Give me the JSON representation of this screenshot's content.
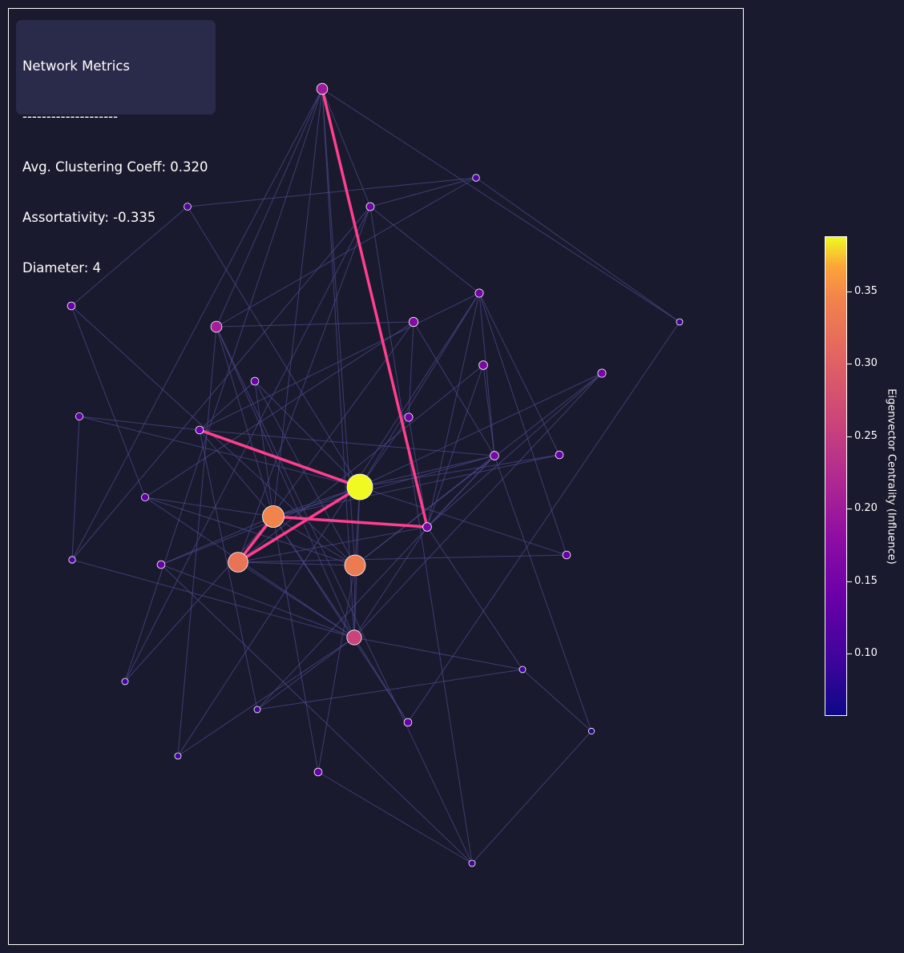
{
  "metrics": {
    "title": "Network Metrics",
    "separator": "--------------------",
    "clustering": "Avg. Clustering Coeff: 0.320",
    "assortativity": "Assortativity: -0.335",
    "diameter": "Diameter: 4"
  },
  "colorbar": {
    "label": "Eigenvector Centrality (Influence)",
    "colormap": "plasma",
    "range": [
      0.057,
      0.388
    ],
    "ticks": [
      "0.10",
      "0.15",
      "0.20",
      "0.25",
      "0.30",
      "0.35"
    ]
  },
  "colors": {
    "background": "#1a1a2e",
    "edge": "#4a4a8a",
    "path": "#ff3f8f",
    "metrics_box": "#2a2a4a"
  },
  "chart_data": {
    "type": "network",
    "nodes": [
      {
        "id": "n0",
        "centrality": 0.388
      },
      {
        "id": "n1",
        "centrality": 0.345
      },
      {
        "id": "n2",
        "centrality": 0.335
      },
      {
        "id": "n3",
        "centrality": 0.325
      },
      {
        "id": "n4",
        "centrality": 0.26
      },
      {
        "id": "n5",
        "centrality": 0.205
      },
      {
        "id": "n6",
        "centrality": 0.2
      },
      {
        "id": "n7",
        "centrality": 0.16
      },
      {
        "id": "n8",
        "centrality": 0.155
      },
      {
        "id": "n9",
        "centrality": 0.15
      },
      {
        "id": "n10",
        "centrality": 0.145
      },
      {
        "id": "n11",
        "centrality": 0.14
      },
      {
        "id": "n12",
        "centrality": 0.14
      },
      {
        "id": "n13",
        "centrality": 0.115
      },
      {
        "id": "n14",
        "centrality": 0.12
      },
      {
        "id": "n15",
        "centrality": 0.16
      },
      {
        "id": "n16",
        "centrality": 0.17
      },
      {
        "id": "n17",
        "centrality": 0.15
      },
      {
        "id": "n18",
        "centrality": 0.14
      },
      {
        "id": "n19",
        "centrality": 0.14
      },
      {
        "id": "n20",
        "centrality": 0.13
      },
      {
        "id": "n21",
        "centrality": 0.13
      },
      {
        "id": "n22",
        "centrality": 0.14
      },
      {
        "id": "n23",
        "centrality": 0.14
      },
      {
        "id": "n24",
        "centrality": 0.15
      },
      {
        "id": "n25",
        "centrality": 0.14
      },
      {
        "id": "n26",
        "centrality": 0.14
      },
      {
        "id": "n27",
        "centrality": 0.11
      },
      {
        "id": "n28",
        "centrality": 0.1
      },
      {
        "id": "n29",
        "centrality": 0.1
      },
      {
        "id": "n30",
        "centrality": 0.1
      },
      {
        "id": "n31",
        "centrality": 0.1
      },
      {
        "id": "n32",
        "centrality": 0.1
      },
      {
        "id": "n33",
        "centrality": 0.1
      }
    ],
    "edges": [
      [
        "n0",
        "n1"
      ],
      [
        "n0",
        "n2"
      ],
      [
        "n0",
        "n3"
      ],
      [
        "n0",
        "n4"
      ],
      [
        "n0",
        "n8"
      ],
      [
        "n0",
        "n9"
      ],
      [
        "n0",
        "n11"
      ],
      [
        "n0",
        "n12"
      ],
      [
        "n0",
        "n14"
      ],
      [
        "n0",
        "n17"
      ],
      [
        "n0",
        "n21"
      ],
      [
        "n0",
        "n22"
      ],
      [
        "n0",
        "n23"
      ],
      [
        "n0",
        "n24"
      ],
      [
        "n0",
        "n26"
      ],
      [
        "n1",
        "n2"
      ],
      [
        "n1",
        "n3"
      ],
      [
        "n1",
        "n4"
      ],
      [
        "n1",
        "n5"
      ],
      [
        "n1",
        "n6"
      ],
      [
        "n1",
        "n7"
      ],
      [
        "n1",
        "n8"
      ],
      [
        "n1",
        "n11"
      ],
      [
        "n1",
        "n12"
      ],
      [
        "n1",
        "n18"
      ],
      [
        "n1",
        "n19"
      ],
      [
        "n1",
        "n20"
      ],
      [
        "n1",
        "n22"
      ],
      [
        "n1",
        "n23"
      ],
      [
        "n1",
        "n28"
      ],
      [
        "n2",
        "n3"
      ],
      [
        "n2",
        "n4"
      ],
      [
        "n2",
        "n6"
      ],
      [
        "n2",
        "n8"
      ],
      [
        "n2",
        "n12"
      ],
      [
        "n2",
        "n19"
      ],
      [
        "n2",
        "n20"
      ],
      [
        "n2",
        "n24"
      ],
      [
        "n2",
        "n25"
      ],
      [
        "n3",
        "n4"
      ],
      [
        "n3",
        "n7"
      ],
      [
        "n3",
        "n10"
      ],
      [
        "n3",
        "n15"
      ],
      [
        "n3",
        "n16"
      ],
      [
        "n3",
        "n26"
      ],
      [
        "n4",
        "n5"
      ],
      [
        "n4",
        "n6"
      ],
      [
        "n4",
        "n7"
      ],
      [
        "n4",
        "n18"
      ],
      [
        "n4",
        "n20"
      ],
      [
        "n4",
        "n22"
      ],
      [
        "n4",
        "n24"
      ],
      [
        "n4",
        "n27"
      ],
      [
        "n4",
        "n29"
      ],
      [
        "n4",
        "n30"
      ],
      [
        "n4",
        "n31"
      ],
      [
        "n5",
        "n6"
      ],
      [
        "n5",
        "n13"
      ],
      [
        "n5",
        "n16"
      ],
      [
        "n5",
        "n30"
      ],
      [
        "n5",
        "n33"
      ],
      [
        "n6",
        "n10"
      ],
      [
        "n6",
        "n27"
      ],
      [
        "n6",
        "n28"
      ],
      [
        "n6",
        "n32"
      ],
      [
        "n7",
        "n8"
      ],
      [
        "n7",
        "n9"
      ],
      [
        "n7",
        "n15"
      ],
      [
        "n7",
        "n17"
      ],
      [
        "n7",
        "n24"
      ],
      [
        "n7",
        "n31"
      ],
      [
        "n8",
        "n9"
      ],
      [
        "n8",
        "n11"
      ],
      [
        "n8",
        "n15"
      ],
      [
        "n8",
        "n16"
      ],
      [
        "n8",
        "n29"
      ],
      [
        "n9",
        "n10"
      ],
      [
        "n9",
        "n11"
      ],
      [
        "n9",
        "n23"
      ],
      [
        "n9",
        "n26"
      ],
      [
        "n9",
        "n30"
      ],
      [
        "n10",
        "n13"
      ],
      [
        "n10",
        "n27"
      ],
      [
        "n10",
        "n28"
      ],
      [
        "n10",
        "n33"
      ],
      [
        "n11",
        "n12"
      ],
      [
        "n11",
        "n21"
      ],
      [
        "n11",
        "n29"
      ],
      [
        "n13",
        "n14"
      ],
      [
        "n13",
        "n32"
      ],
      [
        "n14",
        "n25"
      ],
      [
        "n16",
        "n17"
      ],
      [
        "n16",
        "n20"
      ],
      [
        "n18",
        "n32"
      ],
      [
        "n19",
        "n33"
      ],
      [
        "n20",
        "n25"
      ],
      [
        "n21",
        "n27"
      ],
      [
        "n22",
        "n33"
      ],
      [
        "n29",
        "n31"
      ]
    ],
    "highlighted_path": [
      "n6",
      "n7",
      "n1",
      "n3",
      "n0",
      "n11"
    ]
  }
}
